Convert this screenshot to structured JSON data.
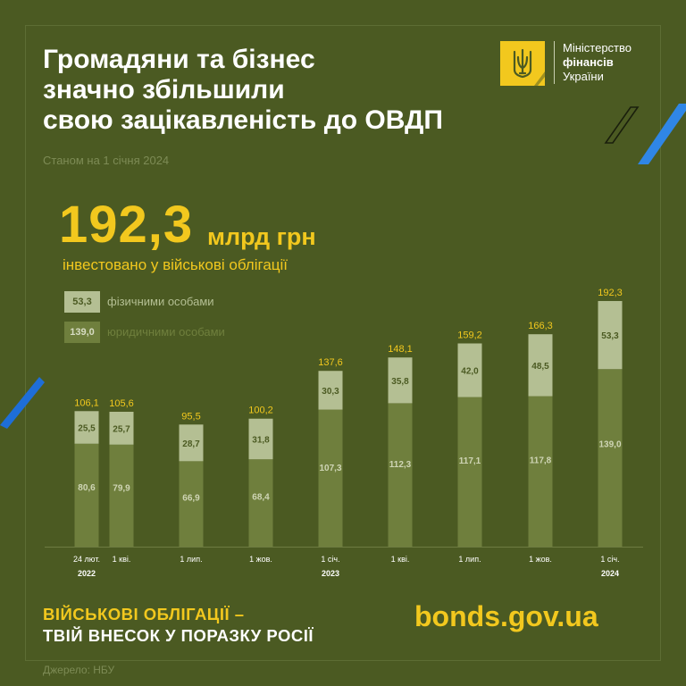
{
  "header": {
    "title_lines": [
      "Громадяни та бізнес",
      "значно збільшили",
      "свою зацікавленість до ОВДП"
    ],
    "subtitle": "Станом на 1 січня 2024"
  },
  "logo": {
    "line1": "Міністерство",
    "line2": "фінансів",
    "line3": "України",
    "icon": "trident-icon"
  },
  "highlight": {
    "value": "192,3",
    "unit": "млрд грн",
    "caption": "інвестовано у військові облігації"
  },
  "footer": {
    "slogan_line1": "ВІЙСЬКОВІ ОБЛІГАЦІЇ –",
    "slogan_line2": "ТВІЙ ВНЕСОК У ПОРАЗКУ РОСІЇ",
    "website": "bonds.gov.ua",
    "source": "Джерело: НБУ"
  },
  "colors": {
    "background": "#4b5a22",
    "accent_yellow": "#f2c81e",
    "individuals": "#b4bf93",
    "legal_entities": "#6f7f3d",
    "blue_accent": "#1e6ed8"
  },
  "chart_data": {
    "type": "bar",
    "stacked": true,
    "categories": [
      "24 лют.",
      "1 кві.",
      "1 лип.",
      "1 жов.",
      "1 січ.",
      "1 кві.",
      "1 лип.",
      "1 жов.",
      "1 січ."
    ],
    "year_labels": [
      "2022",
      "",
      "",
      "",
      "2023",
      "",
      "",
      "",
      "2024"
    ],
    "series": [
      {
        "name": "юридичними особами",
        "legend_value": "139,0",
        "values": [
          80.6,
          79.9,
          66.9,
          68.4,
          107.3,
          112.3,
          117.1,
          117.8,
          139.0
        ],
        "labels": [
          "80,6",
          "79,9",
          "66,9",
          "68,4",
          "107,3",
          "112,3",
          "117,1",
          "117,8",
          "139,0"
        ]
      },
      {
        "name": "фізичними особами",
        "legend_value": "53,3",
        "values": [
          25.5,
          25.7,
          28.7,
          31.8,
          30.3,
          35.8,
          42.0,
          48.5,
          53.3
        ],
        "labels": [
          "25,5",
          "25,7",
          "28,7",
          "31,8",
          "30,3",
          "35,8",
          "42,0",
          "48,5",
          "53,3"
        ]
      }
    ],
    "totals": [
      106.1,
      105.6,
      95.5,
      100.2,
      137.6,
      148.1,
      159.2,
      166.3,
      192.3
    ],
    "total_labels": [
      "106,1",
      "105,6",
      "95,5",
      "100,2",
      "137,6",
      "148,1",
      "159,2",
      "166,3",
      "192,3"
    ],
    "unit": "млрд грн",
    "ylim": [
      0,
      200
    ],
    "legend_position": "top-left"
  }
}
